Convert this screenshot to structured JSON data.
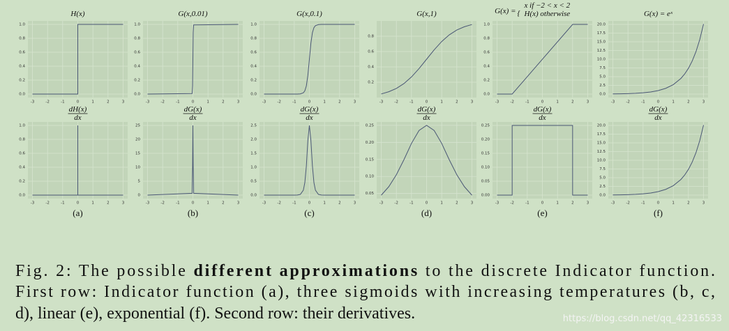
{
  "chart_data": [
    {
      "type": "line",
      "title": "H(x)",
      "x": [
        -3,
        0,
        0,
        3
      ],
      "values": [
        0,
        0,
        1,
        1
      ],
      "xlim": [
        -3.3,
        3.3
      ],
      "ylim": [
        -0.05,
        1.05
      ],
      "xticks": [
        -3,
        -2,
        -1,
        0,
        1,
        2,
        3
      ],
      "yticks": [
        {
          "value": 0,
          "label": "0.0"
        },
        0.2,
        0.4,
        0.6,
        0.8,
        {
          "value": 1,
          "label": "1.0"
        }
      ],
      "grid": true,
      "color": "#4a5775"
    },
    {
      "type": "line",
      "title": "G(x,0.01)",
      "x": [
        -3,
        -0.05,
        -0.02,
        0,
        0.02,
        0.05,
        3
      ],
      "values": [
        0,
        0.007,
        0.119,
        0.5,
        0.881,
        0.993,
        1
      ],
      "xlim": [
        -3.3,
        3.3
      ],
      "ylim": [
        -0.05,
        1.05
      ],
      "xticks": [
        -3,
        -2,
        -1,
        0,
        1,
        2,
        3
      ],
      "yticks": [
        {
          "value": 0,
          "label": "0.0"
        },
        0.2,
        0.4,
        0.6,
        0.8,
        {
          "value": 1,
          "label": "1.0"
        }
      ],
      "grid": true,
      "color": "#4a5775"
    },
    {
      "type": "line",
      "title": "G(x,0.1)",
      "x": [
        -3,
        -1,
        -0.8,
        -0.6,
        -0.4,
        -0.3,
        -0.2,
        -0.1,
        0,
        0.1,
        0.2,
        0.3,
        0.4,
        0.6,
        0.8,
        1,
        3
      ],
      "values": [
        0,
        5e-05,
        0.0003,
        0.0025,
        0.018,
        0.047,
        0.119,
        0.269,
        0.5,
        0.731,
        0.881,
        0.953,
        0.982,
        0.9975,
        0.9997,
        0.99995,
        1
      ],
      "xlim": [
        -3.3,
        3.3
      ],
      "ylim": [
        -0.05,
        1.05
      ],
      "xticks": [
        -3,
        -2,
        -1,
        0,
        1,
        2,
        3
      ],
      "yticks": [
        {
          "value": 0,
          "label": "0.0"
        },
        0.2,
        0.4,
        0.6,
        0.8,
        {
          "value": 1,
          "label": "1.0"
        }
      ],
      "grid": true,
      "color": "#4a5775"
    },
    {
      "type": "line",
      "title": "G(x,1)",
      "x": [
        -3,
        -2.5,
        -2,
        -1.5,
        -1,
        -0.5,
        0,
        0.5,
        1,
        1.5,
        2,
        2.5,
        3
      ],
      "values": [
        0.047,
        0.076,
        0.119,
        0.182,
        0.269,
        0.378,
        0.5,
        0.622,
        0.731,
        0.818,
        0.881,
        0.924,
        0.953
      ],
      "xlim": [
        -3.3,
        3.3
      ],
      "ylim": [
        0,
        1
      ],
      "xticks": [
        -3,
        -2,
        -1,
        0,
        1,
        2,
        3
      ],
      "yticks": [
        0.2,
        0.4,
        0.6,
        0.8
      ],
      "grid": true,
      "color": "#4a5775"
    },
    {
      "type": "line",
      "title": "G(x) =",
      "title_cases": [
        "x        if −2 < x < 2",
        "H(x)  otherwise"
      ],
      "x": [
        -3,
        -2,
        2,
        3
      ],
      "values": [
        0,
        0,
        1,
        1
      ],
      "xlim": [
        -3.3,
        3.3
      ],
      "ylim": [
        -0.05,
        1.05
      ],
      "xticks": [
        -3,
        -2,
        -1,
        0,
        1,
        2,
        3
      ],
      "yticks": [
        {
          "value": 0,
          "label": "0.0"
        },
        0.2,
        0.4,
        0.6,
        0.8,
        {
          "value": 1,
          "label": "1.0"
        }
      ],
      "grid": true,
      "color": "#4a5775"
    },
    {
      "type": "line",
      "title": "G(x) = eˣ",
      "x": [
        -3,
        -2.5,
        -2,
        -1.5,
        -1,
        -0.5,
        0,
        0.5,
        1,
        1.5,
        1.75,
        2,
        2.25,
        2.5,
        2.75,
        3
      ],
      "values": [
        0.05,
        0.082,
        0.135,
        0.223,
        0.368,
        0.607,
        1,
        1.649,
        2.718,
        4.482,
        5.755,
        7.389,
        9.488,
        12.18,
        15.64,
        20.09
      ],
      "xlim": [
        -3.3,
        3.3
      ],
      "ylim": [
        -1,
        21
      ],
      "xticks": [
        -3,
        -2,
        -1,
        0,
        1,
        2,
        3
      ],
      "yticks": [
        {
          "value": 0,
          "label": "0.0"
        },
        2.5,
        {
          "value": 5,
          "label": "5.0"
        },
        7.5,
        {
          "value": 10,
          "label": "10.0"
        },
        12.5,
        {
          "value": 15,
          "label": "15.0"
        },
        17.5,
        {
          "value": 20,
          "label": "20.0"
        }
      ],
      "grid": true,
      "color": "#4a5775"
    },
    {
      "type": "line",
      "title_numerator": "dH(x)",
      "title_denominator": "dx",
      "label": "(a)",
      "x": [
        -3,
        0,
        0,
        0,
        3
      ],
      "values": [
        0,
        0,
        1,
        0,
        0
      ],
      "xlim": [
        -3.3,
        3.3
      ],
      "ylim": [
        -0.05,
        1.05
      ],
      "xticks": [
        -3,
        -2,
        -1,
        0,
        1,
        2,
        3
      ],
      "yticks": [
        {
          "value": 0,
          "label": "0.0"
        },
        0.2,
        0.4,
        0.6,
        0.8,
        {
          "value": 1,
          "label": "1.0"
        }
      ],
      "grid": true,
      "color": "#4a5775"
    },
    {
      "type": "line",
      "title_numerator": "dG(x)",
      "title_denominator": "dx",
      "label": "(b)",
      "x": [
        -3,
        -0.05,
        -0.02,
        0,
        0.02,
        0.05,
        3
      ],
      "values": [
        0,
        0.66,
        10.5,
        25,
        10.5,
        0.66,
        0
      ],
      "xlim": [
        -3.3,
        3.3
      ],
      "ylim": [
        -1.25,
        26.25
      ],
      "xticks": [
        -3,
        -2,
        -1,
        0,
        1,
        2,
        3
      ],
      "yticks": [
        0,
        5,
        10,
        15,
        20,
        25
      ],
      "grid": true,
      "color": "#4a5775"
    },
    {
      "type": "line",
      "title_numerator": "dG(x)",
      "title_denominator": "dx",
      "label": "(c)",
      "x": [
        -3,
        -1,
        -0.8,
        -0.6,
        -0.4,
        -0.3,
        -0.2,
        -0.1,
        0,
        0.1,
        0.2,
        0.3,
        0.4,
        0.6,
        0.8,
        1,
        3
      ],
      "values": [
        0,
        0.0005,
        0.003,
        0.025,
        0.177,
        0.452,
        1.05,
        1.966,
        2.5,
        1.966,
        1.05,
        0.452,
        0.177,
        0.025,
        0.003,
        0.0005,
        0
      ],
      "xlim": [
        -3.3,
        3.3
      ],
      "ylim": [
        -0.125,
        2.625
      ],
      "xticks": [
        -3,
        -2,
        -1,
        0,
        1,
        2,
        3
      ],
      "yticks": [
        {
          "value": 0,
          "label": "0.0"
        },
        0.5,
        {
          "value": 1,
          "label": "1.0"
        },
        1.5,
        {
          "value": 2,
          "label": "2.0"
        },
        2.5
      ],
      "grid": true,
      "color": "#4a5775"
    },
    {
      "type": "line",
      "title_numerator": "dG(x)",
      "title_denominator": "dx",
      "label": "(d)",
      "x": [
        -3,
        -2.5,
        -2,
        -1.5,
        -1,
        -0.5,
        0,
        0.5,
        1,
        1.5,
        2,
        2.5,
        3
      ],
      "values": [
        0.045,
        0.07,
        0.105,
        0.149,
        0.197,
        0.235,
        0.25,
        0.235,
        0.197,
        0.149,
        0.105,
        0.07,
        0.045
      ],
      "xlim": [
        -3.3,
        3.3
      ],
      "ylim": [
        0.035,
        0.26
      ],
      "xticks": [
        -3,
        -2,
        -1,
        0,
        1,
        2,
        3
      ],
      "yticks": [
        0.05,
        {
          "value": 0.1,
          "label": "0.10"
        },
        0.15,
        {
          "value": 0.2,
          "label": "0.20"
        },
        0.25
      ],
      "grid": true,
      "color": "#4a5775"
    },
    {
      "type": "line",
      "title_numerator": "dG(x)",
      "title_denominator": "dx",
      "label": "(e)",
      "x": [
        -3,
        -2,
        -2,
        2,
        2,
        3
      ],
      "values": [
        0,
        0,
        0.25,
        0.25,
        0,
        0
      ],
      "xlim": [
        -3.3,
        3.3
      ],
      "ylim": [
        -0.0125,
        0.2625
      ],
      "xticks": [
        -3,
        -2,
        -1,
        0,
        1,
        2,
        3
      ],
      "yticks": [
        {
          "value": 0,
          "label": "0.00"
        },
        0.05,
        {
          "value": 0.1,
          "label": "0.10"
        },
        0.15,
        {
          "value": 0.2,
          "label": "0.20"
        },
        0.25
      ],
      "grid": true,
      "color": "#4a5775"
    },
    {
      "type": "line",
      "title_numerator": "dG(x)",
      "title_denominator": "dx",
      "label": "(f)",
      "x": [
        -3,
        -2.5,
        -2,
        -1.5,
        -1,
        -0.5,
        0,
        0.5,
        1,
        1.5,
        1.75,
        2,
        2.25,
        2.5,
        2.75,
        3
      ],
      "values": [
        0.05,
        0.082,
        0.135,
        0.223,
        0.368,
        0.607,
        1,
        1.649,
        2.718,
        4.482,
        5.755,
        7.389,
        9.488,
        12.18,
        15.64,
        20.09
      ],
      "xlim": [
        -3.3,
        3.3
      ],
      "ylim": [
        -1,
        21
      ],
      "xticks": [
        -3,
        -2,
        -1,
        0,
        1,
        2,
        3
      ],
      "yticks": [
        {
          "value": 0,
          "label": "0.0"
        },
        2.5,
        {
          "value": 5,
          "label": "5.0"
        },
        7.5,
        {
          "value": 10,
          "label": "10.0"
        },
        12.5,
        {
          "value": 15,
          "label": "15.0"
        },
        17.5,
        {
          "value": 20,
          "label": "20.0"
        }
      ],
      "grid": true,
      "color": "#4a5775"
    }
  ],
  "caption": {
    "line1_start": "Fig. 2: The possible ",
    "line1_bold": "different approximations",
    "line1_end": " to the discrete Indicator function.",
    "line2": "First row: Indicator function (a), three sigmoids with increasing temperatures (b, c,",
    "line3": "d), linear (e), exponential (f). Second row: their derivatives."
  },
  "watermark": "https://blog.csdn.net/qq_42316533"
}
